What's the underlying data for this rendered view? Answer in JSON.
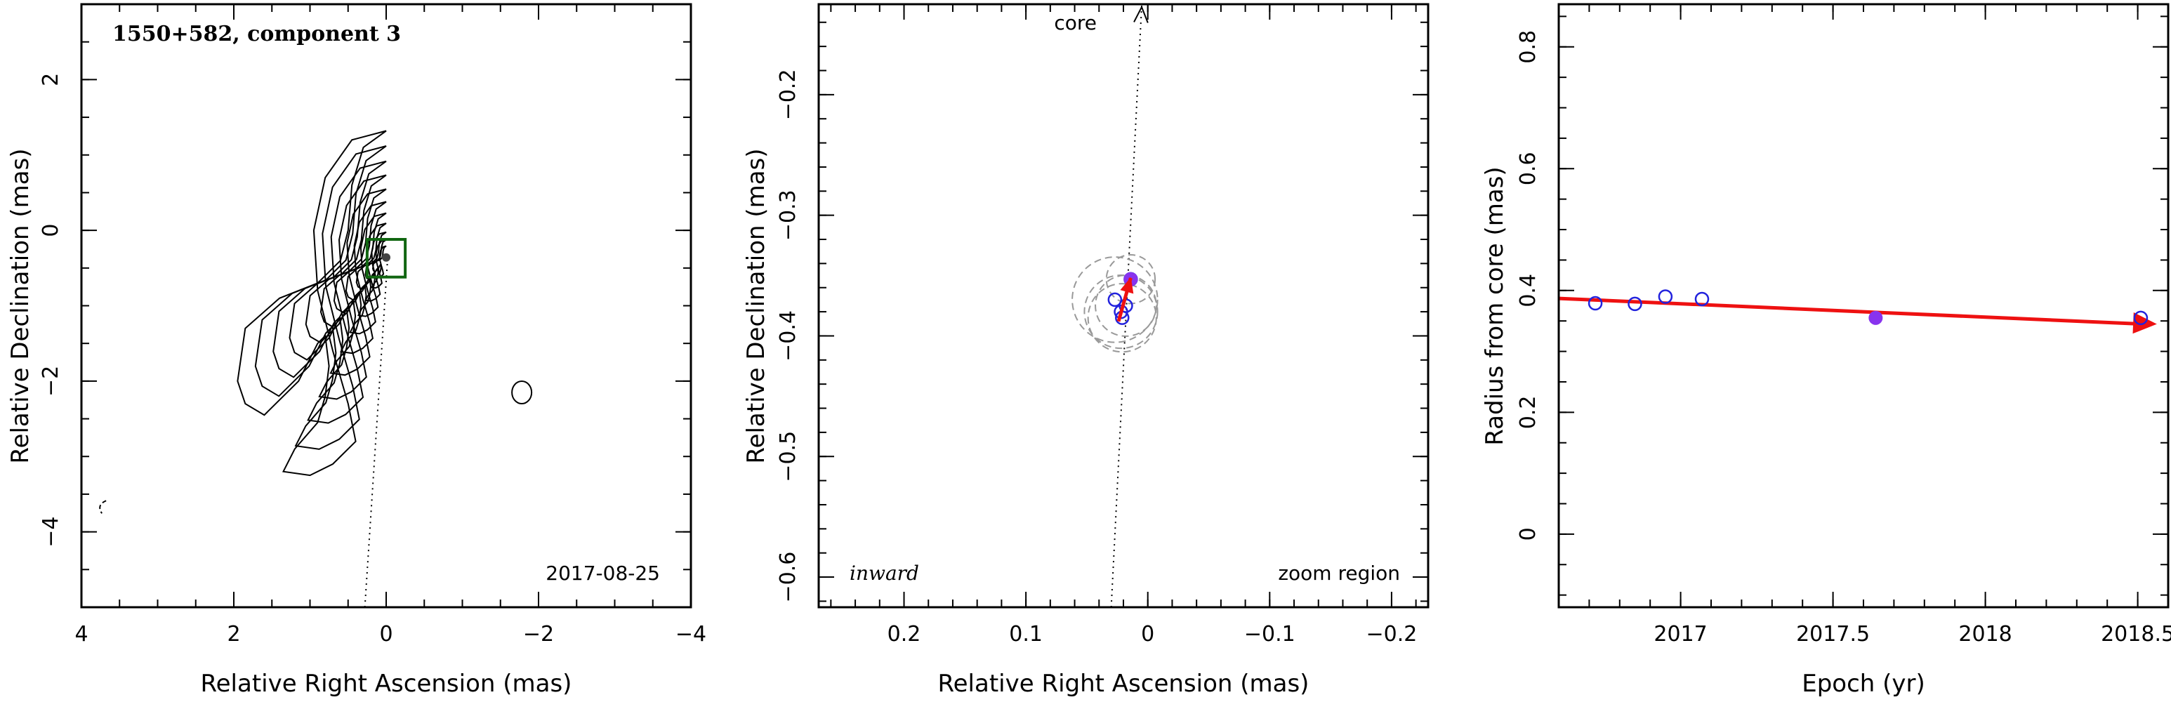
{
  "chart_data": [
    {
      "type": "contour",
      "title": "1550+582, component 3",
      "date_label": "2017-08-25",
      "xlabel": "Relative Right Ascension (mas)",
      "ylabel": "Relative Declination (mas)",
      "xlim": [
        4,
        -4
      ],
      "ylim": [
        -5,
        3
      ],
      "xticks": [
        4,
        2,
        0,
        -2,
        -4
      ],
      "xtick_labels": [
        "4",
        "2",
        "0",
        "−2",
        "−4"
      ],
      "yticks": [
        -4,
        -2,
        0,
        2
      ],
      "ytick_labels": [
        "−4",
        "−2",
        "0",
        "2"
      ],
      "component_position": {
        "ra": 0.0,
        "dec": -0.36
      },
      "zoom_box": {
        "ra_min": -0.25,
        "ra_max": 0.25,
        "dec_min": -0.62,
        "dec_max": -0.12
      },
      "jet_axis_line": {
        "ra": [
          0.28,
          -0.02
        ],
        "dec": [
          -5.0,
          -0.36
        ]
      },
      "extra_features": [
        {
          "ra": -1.78,
          "dec": -2.15,
          "kind": "contour-island"
        },
        {
          "ra": 3.75,
          "dec": -3.68,
          "kind": "contour-fragment"
        }
      ]
    },
    {
      "type": "scatter",
      "xlabel": "Relative Right Ascension (mas)",
      "ylabel": "Relative Declination (mas)",
      "xlim": [
        0.27,
        -0.23
      ],
      "ylim": [
        -0.625,
        -0.125
      ],
      "xticks": [
        0.2,
        0.1,
        0,
        -0.1,
        -0.2
      ],
      "xtick_labels": [
        "0.2",
        "0.1",
        "0",
        "−0.1",
        "−0.2"
      ],
      "yticks": [
        -0.6,
        -0.5,
        -0.4,
        -0.3,
        -0.2
      ],
      "ytick_labels": [
        "−0.6",
        "−0.5",
        "−0.4",
        "−0.3",
        "−0.2"
      ],
      "annotations": {
        "core": "core",
        "inward": "inward",
        "zoom": "zoom region"
      },
      "core_direction_line": {
        "x": [
          0.03,
          0.005
        ],
        "y": [
          -0.625,
          -0.125
        ]
      },
      "points": [
        {
          "x": 0.027,
          "y": -0.37
        },
        {
          "x": 0.022,
          "y": -0.38
        },
        {
          "x": 0.021,
          "y": -0.385
        },
        {
          "x": 0.018,
          "y": -0.375
        },
        {
          "x": 0.014,
          "y": -0.353
        }
      ],
      "highlight_point": {
        "x": 0.014,
        "y": -0.353
      },
      "error_circles": [
        {
          "x": 0.027,
          "y": -0.37,
          "r": 0.035
        },
        {
          "x": 0.022,
          "y": -0.38,
          "r": 0.03
        },
        {
          "x": 0.021,
          "y": -0.385,
          "r": 0.028
        },
        {
          "x": 0.018,
          "y": -0.375,
          "r": 0.025
        },
        {
          "x": 0.014,
          "y": -0.353,
          "r": 0.02
        }
      ],
      "motion_arrow": {
        "x": [
          0.024,
          0.014
        ],
        "y": [
          -0.388,
          -0.352
        ]
      }
    },
    {
      "type": "scatter",
      "xlabel": "Epoch (yr)",
      "ylabel": "Radius from core (mas)",
      "xlim": [
        2016.6,
        2018.6
      ],
      "ylim": [
        -0.12,
        0.87
      ],
      "xticks": [
        2017,
        2017.5,
        2018,
        2018.5
      ],
      "xtick_labels": [
        "2017",
        "2017.5",
        "2018",
        "2018.5"
      ],
      "yticks": [
        0,
        0.2,
        0.4,
        0.6,
        0.8
      ],
      "ytick_labels": [
        "0",
        "0.2",
        "0.4",
        "0.6",
        "0.8"
      ],
      "points": [
        {
          "x": 2016.72,
          "y": 0.379
        },
        {
          "x": 2016.85,
          "y": 0.378
        },
        {
          "x": 2016.95,
          "y": 0.39
        },
        {
          "x": 2017.07,
          "y": 0.386
        },
        {
          "x": 2017.64,
          "y": 0.355
        },
        {
          "x": 2018.51,
          "y": 0.355
        }
      ],
      "highlight_point": {
        "x": 2017.64,
        "y": 0.355
      },
      "trend_arrow": {
        "x": [
          2016.6,
          2018.56
        ],
        "y": [
          0.387,
          0.345
        ]
      }
    }
  ],
  "colors": {
    "highlight": "#8833ee",
    "arrow": "#ee1111",
    "open_point": "#2222dd",
    "zoom_box": "#116611",
    "error_circle": "#999999"
  }
}
